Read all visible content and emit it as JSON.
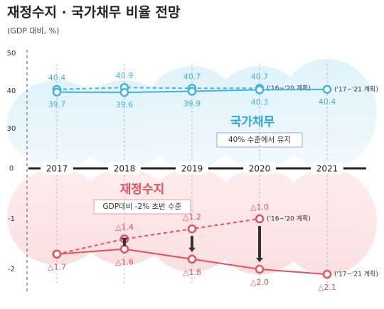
{
  "title": "재정수지 · 국가채무 비율 전망",
  "subtitle": "(GDP 대비, %)",
  "chart_data": [
    {
      "type": "line",
      "categories": [
        "2017",
        "2018",
        "2019",
        "2020",
        "2021"
      ],
      "ylim": [
        30,
        50
      ],
      "yticks": [
        30,
        40,
        50
      ],
      "annotation": "국가채무",
      "note": "40% 수준에서 유지",
      "color": "#3fb3e6",
      "series": [
        {
          "name": "('16~'20 계획)",
          "dashed": true,
          "values": [
            40.4,
            40.9,
            40.7,
            40.7,
            null
          ]
        },
        {
          "name": "('17~'21 계획)",
          "dashed": false,
          "values": [
            39.7,
            39.6,
            39.9,
            40.3,
            40.4
          ]
        }
      ]
    },
    {
      "type": "line",
      "ylim": [
        -2,
        0
      ],
      "yticks": [
        -2,
        -1,
        0
      ],
      "annotation": "재정수지",
      "note": "GDP대비 -2% 초반 수준",
      "color": "#e8505b",
      "series": [
        {
          "name": "('16~'20 계획)",
          "dashed": true,
          "values": [
            -1.7,
            -1.4,
            -1.2,
            -1.0,
            null
          ],
          "value_labels": [
            null,
            "△1.4",
            "△1.2",
            "△1.0",
            null
          ]
        },
        {
          "name": "('17~'21 계획)",
          "dashed": false,
          "values": [
            -1.7,
            -1.6,
            -1.8,
            -2.0,
            -2.1
          ],
          "value_labels": [
            "△1.7",
            "△1.6",
            "△1.8",
            "△2.0",
            "△2.1"
          ]
        }
      ]
    }
  ]
}
